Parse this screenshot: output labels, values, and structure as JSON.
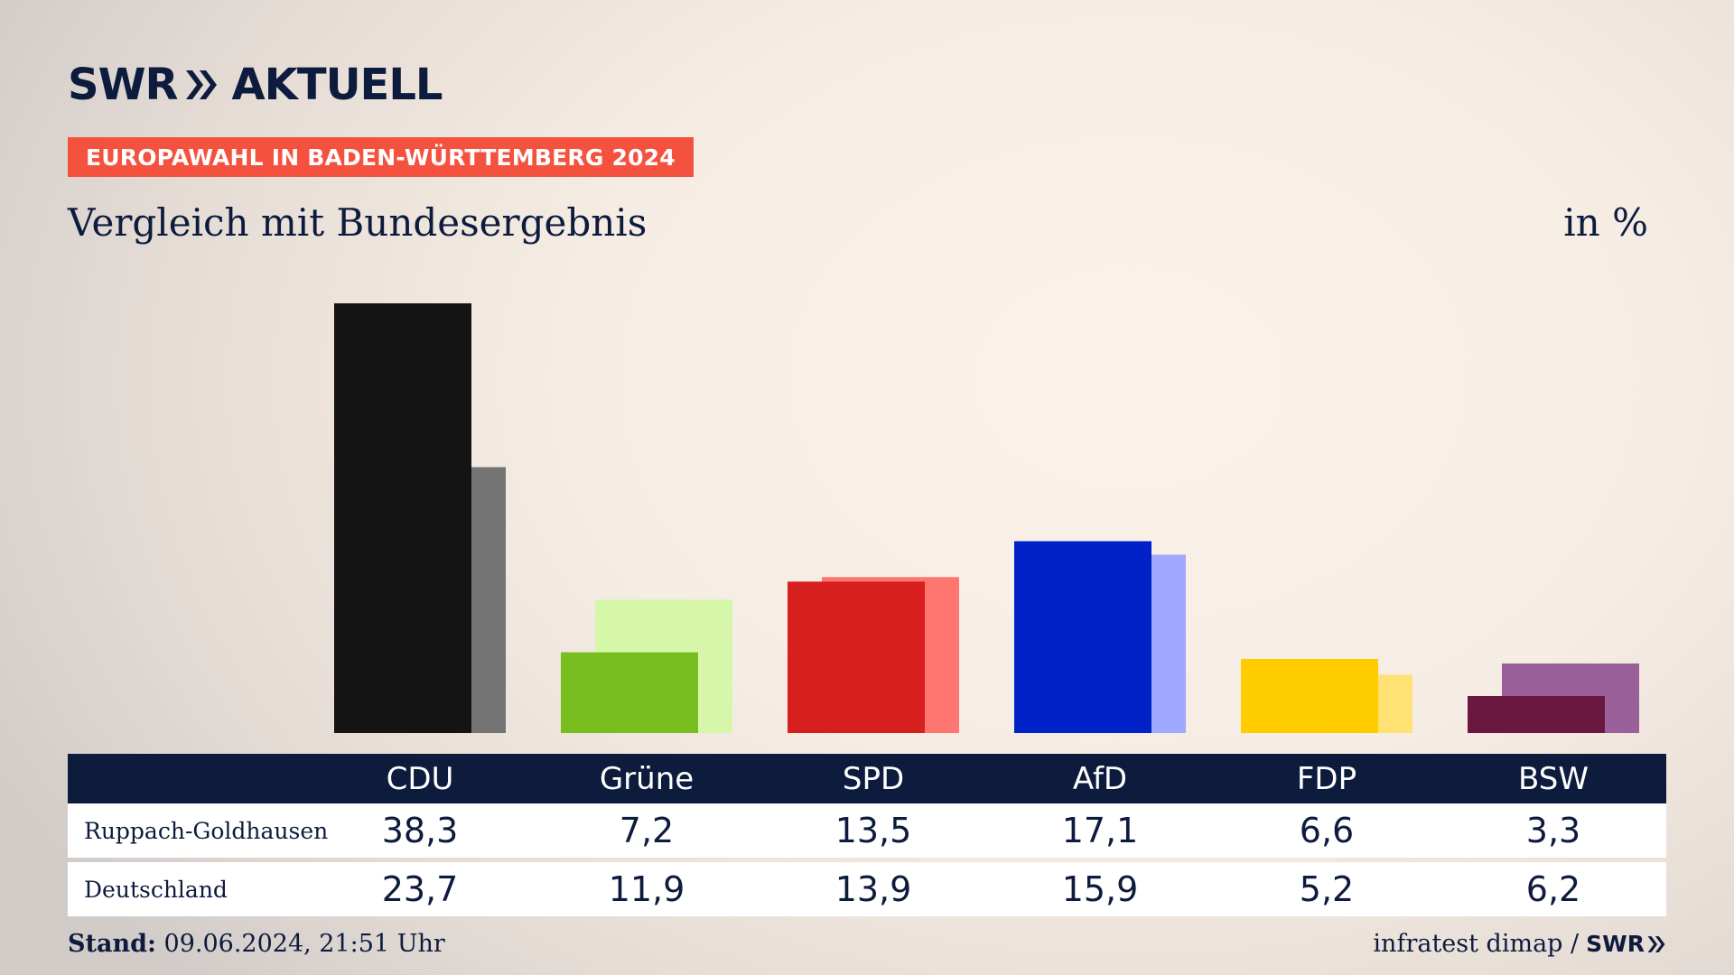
{
  "header": {
    "logo_text_1": "SWR",
    "logo_text_2": "AKTUELL",
    "banner": "EUROPAWAHL IN BADEN-WÜRTTEMBERG 2024",
    "subtitle": "Vergleich mit Bundesergebnis",
    "unit": "in %"
  },
  "colors": {
    "navy": "#0d1b3d",
    "banner": "#f4523e"
  },
  "chart_data": {
    "type": "bar",
    "categories": [
      "CDU",
      "Grüne",
      "SPD",
      "AfD",
      "FDP",
      "BSW"
    ],
    "series": [
      {
        "name": "Ruppach-Goldhausen",
        "values": [
          38.3,
          7.2,
          13.5,
          17.1,
          6.6,
          3.3
        ]
      },
      {
        "name": "Deutschland",
        "values": [
          23.7,
          11.9,
          13.9,
          15.9,
          5.2,
          6.2
        ]
      }
    ],
    "value_labels": {
      "Ruppach-Goldhausen": [
        "38,3",
        "7,2",
        "13,5",
        "17,1",
        "6,6",
        "3,3"
      ],
      "Deutschland": [
        "23,7",
        "11,9",
        "13,9",
        "15,9",
        "5,2",
        "6,2"
      ]
    },
    "colors_primary": [
      "#141414",
      "#78be1e",
      "#d71f1f",
      "#0022c7",
      "#ffcc00",
      "#6b1840"
    ],
    "colors_secondary": [
      "#747474",
      "#d6f7aa",
      "#ff7670",
      "#9ea9ff",
      "#ffe174",
      "#9b5f99"
    ],
    "ylim": [
      0,
      38.3
    ],
    "grid": false,
    "legend": "none"
  },
  "footer": {
    "stand_label": "Stand:",
    "stand_value": "09.06.2024, 21:51 Uhr",
    "source": "infratest dimap /",
    "source_logo": "SWR"
  }
}
